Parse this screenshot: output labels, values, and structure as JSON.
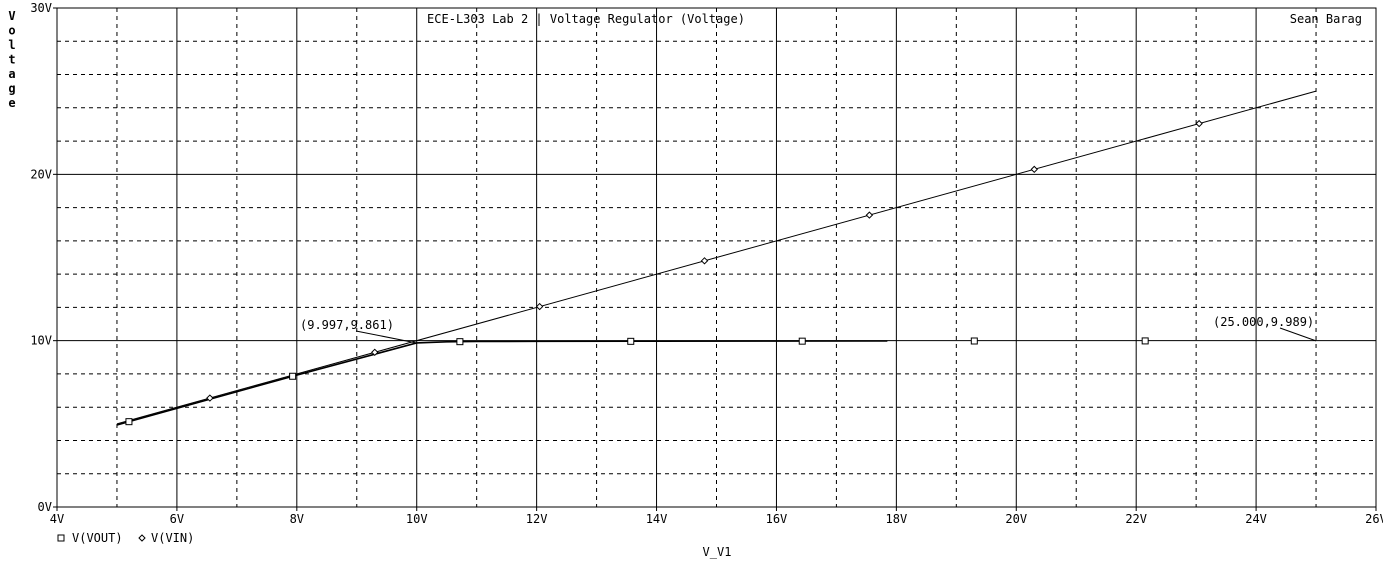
{
  "chart_data": {
    "type": "line",
    "title": "ECE-L303  Lab 2 | Voltage Regulator (Voltage)",
    "author": "Sean Barag",
    "xlabel": "V_V1",
    "ylabel": "Voltage",
    "xlim": [
      4,
      26
    ],
    "ylim": [
      0,
      30
    ],
    "x_ticks": [
      "4V",
      "6V",
      "8V",
      "10V",
      "12V",
      "14V",
      "16V",
      "18V",
      "20V",
      "22V",
      "24V",
      "26V"
    ],
    "x_tick_values": [
      4,
      6,
      8,
      10,
      12,
      14,
      16,
      18,
      20,
      22,
      24,
      26
    ],
    "y_ticks": [
      "0V",
      "10V",
      "20V",
      "30V"
    ],
    "y_tick_values": [
      0,
      10,
      20,
      30
    ],
    "grid": true,
    "legend_position": "bottom-left",
    "series": [
      {
        "name": "V(VOUT)",
        "marker": "square",
        "x": [
          5.0,
          8.0,
          9.997,
          10.5,
          11.0,
          12.0,
          14.0,
          16.0,
          17.85
        ],
        "y": [
          4.93,
          7.93,
          9.861,
          9.93,
          9.95,
          9.96,
          9.97,
          9.975,
          9.98
        ],
        "marker_points": [
          [
            5.2,
            5.13
          ],
          [
            7.93,
            7.86
          ],
          [
            10.72,
            9.94
          ],
          [
            13.57,
            9.96
          ],
          [
            16.43,
            9.97
          ],
          [
            19.3,
            9.98
          ],
          [
            22.15,
            9.985
          ]
        ]
      },
      {
        "name": "V(VIN)",
        "marker": "diamond",
        "x": [
          5.0,
          25.0
        ],
        "y": [
          5.0,
          25.0
        ],
        "marker_points": [
          [
            6.55,
            6.55
          ],
          [
            9.3,
            9.3
          ],
          [
            12.05,
            12.05
          ],
          [
            14.8,
            14.8
          ],
          [
            17.55,
            17.55
          ],
          [
            20.3,
            20.3
          ],
          [
            23.05,
            23.05
          ]
        ]
      }
    ],
    "annotations": [
      {
        "text": "(9.997,9.861)",
        "x": 9.997,
        "y": 9.861
      },
      {
        "text": "(25.000,9.989)",
        "x": 25.0,
        "y": 9.989
      }
    ]
  }
}
